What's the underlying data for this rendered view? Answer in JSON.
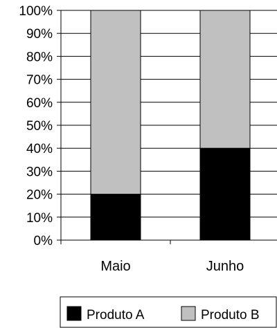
{
  "chart_data": {
    "type": "bar",
    "stacked": true,
    "categories": [
      "Maio",
      "Junho"
    ],
    "series": [
      {
        "name": "Produto A",
        "values": [
          20,
          40
        ],
        "color": "#000000"
      },
      {
        "name": "Produto B",
        "values": [
          80,
          60
        ],
        "color": "#c0c0c0"
      }
    ],
    "ylim": [
      0,
      100
    ],
    "yticks": [
      "0%",
      "10%",
      "20%",
      "30%",
      "40%",
      "50%",
      "60%",
      "70%",
      "80%",
      "90%",
      "100%"
    ],
    "grid": true,
    "legend_position": "bottom"
  }
}
